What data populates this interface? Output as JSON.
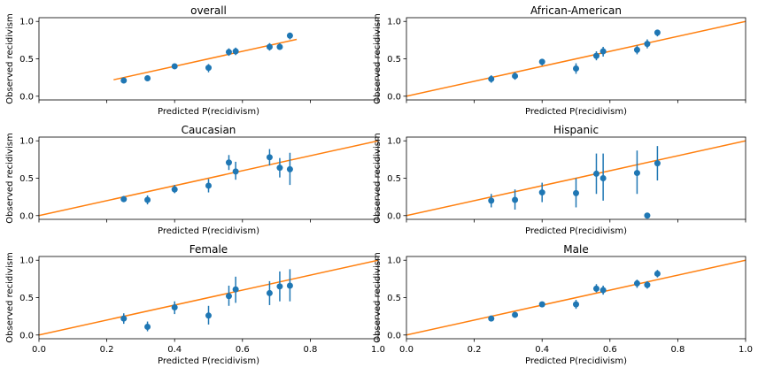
{
  "colors": {
    "points": "#1f77b4",
    "reference_line": "#ff7f0e",
    "axes": "#000000"
  },
  "chart_data": [
    {
      "type": "scatter",
      "title": "overall",
      "xlabel": "Predicted P(recidivism)",
      "ylabel": "Observed recidivism",
      "xlim": [
        0.0,
        1.0
      ],
      "ylim": [
        -0.05,
        1.05
      ],
      "xticks": [],
      "yticks": [
        "0.0",
        "0.5",
        "1.0"
      ],
      "reference_line": {
        "x": [
          0.22,
          0.76
        ],
        "y": [
          0.22,
          0.76
        ]
      },
      "points": [
        {
          "x": 0.25,
          "y": 0.21,
          "lo": 0.19,
          "hi": 0.23
        },
        {
          "x": 0.32,
          "y": 0.24,
          "lo": 0.22,
          "hi": 0.26
        },
        {
          "x": 0.4,
          "y": 0.4,
          "lo": 0.37,
          "hi": 0.43
        },
        {
          "x": 0.5,
          "y": 0.38,
          "lo": 0.32,
          "hi": 0.43
        },
        {
          "x": 0.56,
          "y": 0.59,
          "lo": 0.54,
          "hi": 0.64
        },
        {
          "x": 0.58,
          "y": 0.6,
          "lo": 0.55,
          "hi": 0.65
        },
        {
          "x": 0.68,
          "y": 0.66,
          "lo": 0.61,
          "hi": 0.71
        },
        {
          "x": 0.71,
          "y": 0.66,
          "lo": 0.62,
          "hi": 0.71
        },
        {
          "x": 0.74,
          "y": 0.81,
          "lo": 0.76,
          "hi": 0.85
        }
      ]
    },
    {
      "type": "scatter",
      "title": "African-American",
      "xlabel": "Predicted P(recidivism)",
      "ylabel": "Observed recidivism",
      "xlim": [
        0.0,
        1.0
      ],
      "ylim": [
        -0.05,
        1.05
      ],
      "xticks": [],
      "yticks": [
        "0.0",
        "0.5",
        "1.0"
      ],
      "reference_line": {
        "x": [
          0.0,
          1.0
        ],
        "y": [
          0.0,
          1.0
        ]
      },
      "points": [
        {
          "x": 0.25,
          "y": 0.23,
          "lo": 0.18,
          "hi": 0.28
        },
        {
          "x": 0.32,
          "y": 0.27,
          "lo": 0.22,
          "hi": 0.32
        },
        {
          "x": 0.4,
          "y": 0.46,
          "lo": 0.41,
          "hi": 0.5
        },
        {
          "x": 0.5,
          "y": 0.37,
          "lo": 0.3,
          "hi": 0.44
        },
        {
          "x": 0.56,
          "y": 0.54,
          "lo": 0.48,
          "hi": 0.6
        },
        {
          "x": 0.58,
          "y": 0.6,
          "lo": 0.53,
          "hi": 0.66
        },
        {
          "x": 0.68,
          "y": 0.62,
          "lo": 0.56,
          "hi": 0.68
        },
        {
          "x": 0.71,
          "y": 0.7,
          "lo": 0.64,
          "hi": 0.76
        },
        {
          "x": 0.74,
          "y": 0.85,
          "lo": 0.8,
          "hi": 0.89
        }
      ]
    },
    {
      "type": "scatter",
      "title": "Caucasian",
      "xlabel": "Predicted P(recidivism)",
      "ylabel": "Observed recidivism",
      "xlim": [
        0.0,
        1.0
      ],
      "ylim": [
        -0.05,
        1.05
      ],
      "xticks": [],
      "yticks": [
        "0.0",
        "0.5",
        "1.0"
      ],
      "reference_line": {
        "x": [
          0.0,
          1.0
        ],
        "y": [
          0.0,
          1.0
        ]
      },
      "points": [
        {
          "x": 0.25,
          "y": 0.22,
          "lo": 0.18,
          "hi": 0.26
        },
        {
          "x": 0.32,
          "y": 0.21,
          "lo": 0.15,
          "hi": 0.27
        },
        {
          "x": 0.4,
          "y": 0.35,
          "lo": 0.3,
          "hi": 0.41
        },
        {
          "x": 0.5,
          "y": 0.4,
          "lo": 0.31,
          "hi": 0.49
        },
        {
          "x": 0.56,
          "y": 0.71,
          "lo": 0.61,
          "hi": 0.81
        },
        {
          "x": 0.58,
          "y": 0.59,
          "lo": 0.48,
          "hi": 0.72
        },
        {
          "x": 0.68,
          "y": 0.78,
          "lo": 0.67,
          "hi": 0.89
        },
        {
          "x": 0.71,
          "y": 0.64,
          "lo": 0.51,
          "hi": 0.77
        },
        {
          "x": 0.74,
          "y": 0.62,
          "lo": 0.41,
          "hi": 0.84
        }
      ]
    },
    {
      "type": "scatter",
      "title": "Hispanic",
      "xlabel": "Predicted P(recidivism)",
      "ylabel": "Observed recidivism",
      "xlim": [
        0.0,
        1.0
      ],
      "ylim": [
        -0.05,
        1.05
      ],
      "xticks": [],
      "yticks": [
        "0.0",
        "0.5",
        "1.0"
      ],
      "reference_line": {
        "x": [
          0.0,
          1.0
        ],
        "y": [
          0.0,
          1.0
        ]
      },
      "points": [
        {
          "x": 0.25,
          "y": 0.2,
          "lo": 0.11,
          "hi": 0.29
        },
        {
          "x": 0.32,
          "y": 0.21,
          "lo": 0.08,
          "hi": 0.35
        },
        {
          "x": 0.4,
          "y": 0.31,
          "lo": 0.18,
          "hi": 0.44
        },
        {
          "x": 0.5,
          "y": 0.3,
          "lo": 0.11,
          "hi": 0.5
        },
        {
          "x": 0.56,
          "y": 0.56,
          "lo": 0.29,
          "hi": 0.83
        },
        {
          "x": 0.58,
          "y": 0.5,
          "lo": 0.2,
          "hi": 0.83
        },
        {
          "x": 0.68,
          "y": 0.57,
          "lo": 0.29,
          "hi": 0.87
        },
        {
          "x": 0.71,
          "y": 0.0,
          "lo": 0.0,
          "hi": 0.0
        },
        {
          "x": 0.74,
          "y": 0.7,
          "lo": 0.47,
          "hi": 0.93
        }
      ]
    },
    {
      "type": "scatter",
      "title": "Female",
      "xlabel": "Predicted P(recidivism)",
      "ylabel": "Observed recidivism",
      "xlim": [
        0.0,
        1.0
      ],
      "ylim": [
        -0.05,
        1.05
      ],
      "xticks": [
        "0.0",
        "0.2",
        "0.4",
        "0.6",
        "0.8",
        "1.0"
      ],
      "yticks": [
        "0.0",
        "0.5",
        "1.0"
      ],
      "reference_line": {
        "x": [
          0.0,
          1.0
        ],
        "y": [
          0.0,
          1.0
        ]
      },
      "points": [
        {
          "x": 0.25,
          "y": 0.22,
          "lo": 0.15,
          "hi": 0.29
        },
        {
          "x": 0.32,
          "y": 0.11,
          "lo": 0.05,
          "hi": 0.18
        },
        {
          "x": 0.4,
          "y": 0.37,
          "lo": 0.28,
          "hi": 0.45
        },
        {
          "x": 0.5,
          "y": 0.26,
          "lo": 0.14,
          "hi": 0.39
        },
        {
          "x": 0.56,
          "y": 0.52,
          "lo": 0.39,
          "hi": 0.66
        },
        {
          "x": 0.58,
          "y": 0.61,
          "lo": 0.43,
          "hi": 0.78
        },
        {
          "x": 0.68,
          "y": 0.56,
          "lo": 0.4,
          "hi": 0.72
        },
        {
          "x": 0.71,
          "y": 0.65,
          "lo": 0.45,
          "hi": 0.85
        },
        {
          "x": 0.74,
          "y": 0.66,
          "lo": 0.45,
          "hi": 0.88
        }
      ]
    },
    {
      "type": "scatter",
      "title": "Male",
      "xlabel": "Predicted P(recidivism)",
      "ylabel": "Observed recidivism",
      "xlim": [
        0.0,
        1.0
      ],
      "ylim": [
        -0.05,
        1.05
      ],
      "xticks": [
        "0.0",
        "0.2",
        "0.4",
        "0.6",
        "0.8",
        "1.0"
      ],
      "yticks": [
        "0.0",
        "0.5",
        "1.0"
      ],
      "reference_line": {
        "x": [
          0.0,
          1.0
        ],
        "y": [
          0.0,
          1.0
        ]
      },
      "points": [
        {
          "x": 0.25,
          "y": 0.22,
          "lo": 0.2,
          "hi": 0.24
        },
        {
          "x": 0.32,
          "y": 0.27,
          "lo": 0.24,
          "hi": 0.3
        },
        {
          "x": 0.4,
          "y": 0.41,
          "lo": 0.38,
          "hi": 0.44
        },
        {
          "x": 0.5,
          "y": 0.41,
          "lo": 0.35,
          "hi": 0.47
        },
        {
          "x": 0.56,
          "y": 0.62,
          "lo": 0.57,
          "hi": 0.68
        },
        {
          "x": 0.58,
          "y": 0.6,
          "lo": 0.54,
          "hi": 0.66
        },
        {
          "x": 0.68,
          "y": 0.69,
          "lo": 0.63,
          "hi": 0.74
        },
        {
          "x": 0.71,
          "y": 0.67,
          "lo": 0.62,
          "hi": 0.72
        },
        {
          "x": 0.74,
          "y": 0.82,
          "lo": 0.77,
          "hi": 0.87
        }
      ]
    }
  ]
}
